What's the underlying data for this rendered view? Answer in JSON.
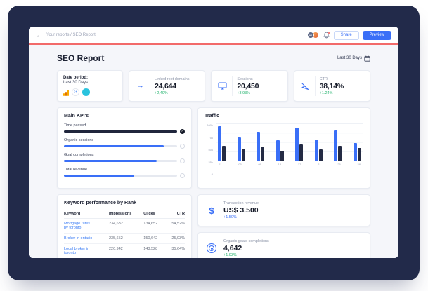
{
  "icons": {
    "back": "←",
    "check": "✓",
    "dollar": "$",
    "arrow_right": "→"
  },
  "colors": {
    "accent_blue": "#3a6ff7",
    "green": "#2bb673",
    "navy": "#222a4a",
    "accent_line": "#f26a6a",
    "link_blue": "#3c7df5"
  },
  "topbar": {
    "breadcrumb": "Your reports / SEO Report",
    "avatar_initials": "Af",
    "share_label": "Share",
    "preview_label": "Preview"
  },
  "report": {
    "title": "SEO Report",
    "date_filter": "Last 30 Days"
  },
  "date_card": {
    "label": "Date period:",
    "value": "Last 30 Days",
    "google_letter": "G"
  },
  "stat_cards": [
    {
      "label": "Linked root domains",
      "value": "24,644",
      "delta": "+2,49%"
    },
    {
      "label": "Sessions",
      "value": "20,450",
      "delta": "+3.93%"
    },
    {
      "label": "CTR",
      "value": "38,14%",
      "delta": "+1.24%"
    }
  ],
  "kpi": {
    "title": "Main KPI's",
    "items": [
      {
        "label": "Time passed",
        "pct": 100,
        "state": "done"
      },
      {
        "label": "Organic sessions",
        "pct": 88,
        "state": "open"
      },
      {
        "label": "Goal completions",
        "pct": 82,
        "state": "open"
      },
      {
        "label": "Total revenue",
        "pct": 62,
        "state": "open"
      }
    ]
  },
  "traffic": {
    "title": "Traffic",
    "chart_data": {
      "type": "bar",
      "categories": [
        "01",
        "05",
        "09",
        "13",
        "17",
        "21",
        "25",
        "28"
      ],
      "series": [
        {
          "name": "series-1",
          "color": "#3a6ff7",
          "values": [
            92,
            62,
            78,
            55,
            88,
            56,
            82,
            48
          ]
        },
        {
          "name": "series-2",
          "color": "#242b44",
          "values": [
            40,
            30,
            36,
            26,
            44,
            30,
            40,
            34
          ]
        }
      ],
      "title": "Traffic",
      "xlabel": "",
      "ylabel": "",
      "ylim": [
        0,
        100
      ],
      "yticks": [
        "100k",
        "75k",
        "50k",
        "25k",
        "0"
      ],
      "grid": true,
      "legend": false
    }
  },
  "keywords": {
    "title": "Keyword performance by Rank",
    "headers": [
      "Keyword",
      "Impressions",
      "Clicks",
      "CTR"
    ],
    "rows": [
      {
        "keyword": "Mortgage rates by toronto",
        "impressions": "234,632",
        "clicks": "134,652",
        "ctr": "54,52%"
      },
      {
        "keyword": "Broker in ontario",
        "impressions": "235,652",
        "clicks": "150,642",
        "ctr": "25,93%"
      },
      {
        "keyword": "Local broker in toronto",
        "impressions": "220,942",
        "clicks": "143,528",
        "ctr": "35,64%"
      }
    ]
  },
  "revenue_card": {
    "label": "Transaction revenue",
    "value": "US$ 3.500",
    "delta": "+1.50%"
  },
  "goals_card": {
    "label": "Organic goals completions",
    "value": "4,642",
    "delta": "+1.93%"
  }
}
